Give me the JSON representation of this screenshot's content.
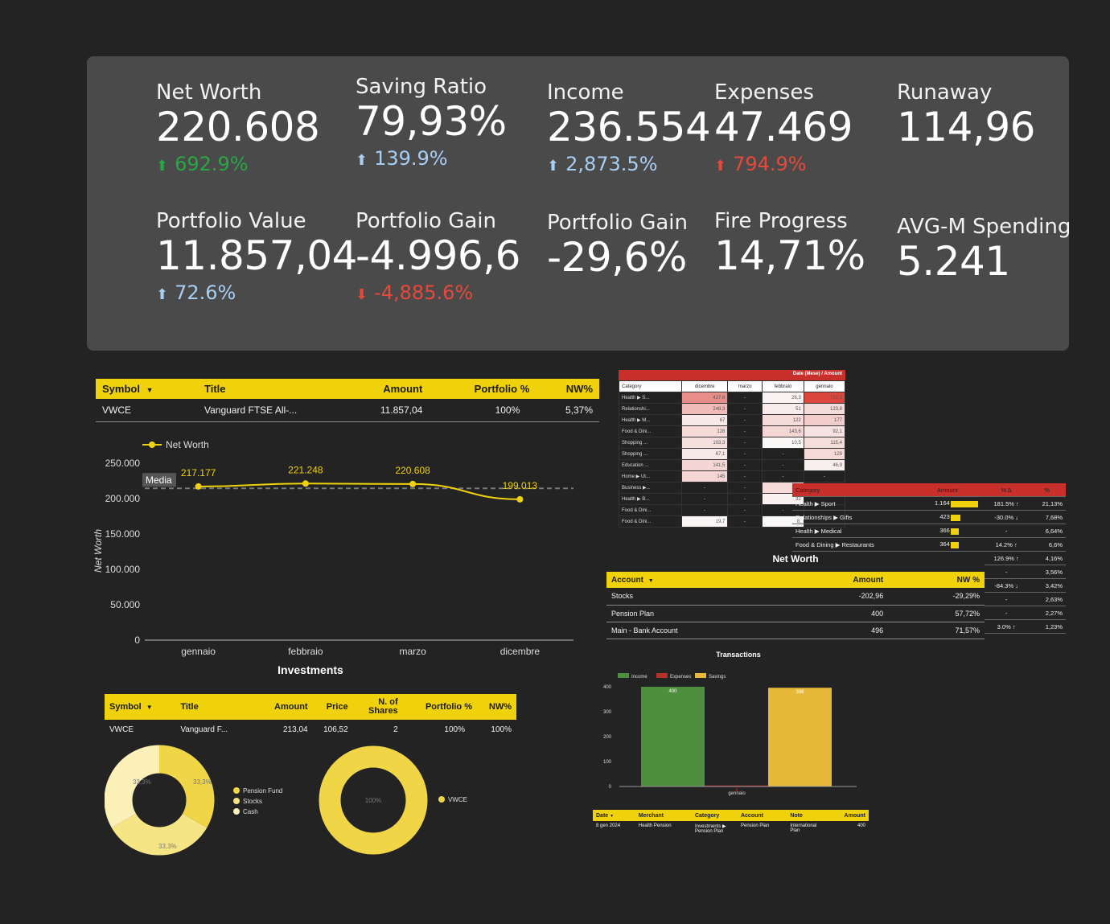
{
  "kpis": {
    "net_worth": {
      "label": "Net Worth",
      "value": "220.608",
      "delta": "692.9%",
      "dir": "up"
    },
    "saving_ratio": {
      "label": "Saving Ratio",
      "value": "79,93%",
      "delta": "139.9%",
      "dir": "up"
    },
    "income": {
      "label": "Income",
      "value": "236.554",
      "delta": "2,873.5%",
      "dir": "up"
    },
    "expenses": {
      "label": "Expenses",
      "value": "47.469",
      "delta": "794.9%",
      "dir": "up"
    },
    "runaway": {
      "label": "Runaway",
      "value": "114,96"
    },
    "portfolio_value": {
      "label": "Portfolio Value",
      "value": "11.857,04",
      "delta": "72.6%",
      "dir": "up"
    },
    "portfolio_gain_abs": {
      "label": "Portfolio Gain",
      "value": "-4.996,6",
      "delta": "-4,885.6%",
      "dir": "down"
    },
    "portfolio_gain_pct": {
      "label": "Portfolio Gain",
      "value": "-29,6%"
    },
    "fire_progress": {
      "label": "Fire Progress",
      "value": "14,71%"
    },
    "avg_spending": {
      "label": "AVG-M Spending",
      "value": "5.241"
    }
  },
  "portfolio_table": {
    "headers": [
      "Symbol",
      "Title",
      "Amount",
      "Portfolio %",
      "NW%"
    ],
    "rows": [
      [
        "VWCE",
        "Vanguard FTSE All-...",
        "11.857,04",
        "100%",
        "5,37%"
      ]
    ]
  },
  "networth_chart": {
    "legend": "Net Worth",
    "ylabel": "Net Worth",
    "media_label": "Media",
    "chart_data": {
      "type": "line",
      "categories": [
        "gennaio",
        "febbraio",
        "marzo",
        "dicembre"
      ],
      "values": [
        217177,
        221248,
        220608,
        199013
      ],
      "value_labels": [
        "217.177",
        "221.248",
        "220.608",
        "199.013"
      ],
      "average": 214512,
      "ylim": [
        0,
        250000
      ],
      "yticks": [
        0,
        50000,
        100000,
        150000,
        200000,
        250000
      ],
      "ytick_labels": [
        "0",
        "50.000",
        "100.000",
        "150.000",
        "200.000",
        "250.000"
      ]
    }
  },
  "investments": {
    "title": "Investments",
    "headers": [
      "Symbol",
      "Title",
      "Amount",
      "Price",
      "N. of Shares",
      "Portfolio %",
      "NW%"
    ],
    "rows": [
      [
        "VWCE",
        "Vanguard F...",
        "213,04",
        "106,52",
        "2",
        "100%",
        "100%"
      ]
    ]
  },
  "donut_alloc": {
    "slice_labels": [
      "33,3%",
      "33,3%",
      "33,3%"
    ],
    "legend": [
      "Pension Fund",
      "Stocks",
      "Cash"
    ],
    "colors": [
      "#f0d546",
      "#f6e585",
      "#faf0b8"
    ],
    "values": [
      33.3,
      33.3,
      33.3
    ]
  },
  "donut_symbol": {
    "slice_label": "100%",
    "legend": [
      "VWCE"
    ],
    "color": "#f0d546"
  },
  "heatmap": {
    "title": "Date (Mese) / Amount",
    "headers": [
      "Category",
      "dicembre",
      "marzo",
      "febbraio",
      "gennaio"
    ],
    "rows": [
      [
        "Health ▶ S...",
        "427,6",
        "-",
        "26,3",
        "710,3"
      ],
      [
        "Relationshi...",
        "248,3",
        "-",
        "51",
        "123,8"
      ],
      [
        "Health ▶ M...",
        "67",
        "-",
        "122",
        "177"
      ],
      [
        "Food & Dini...",
        "128",
        "-",
        "143,6",
        "92,1"
      ],
      [
        "Shopping ...",
        "103,3",
        "-",
        "10,5",
        "115,4"
      ],
      [
        "Shopping ...",
        "67,1",
        "-",
        "-",
        "129"
      ],
      [
        "Education ...",
        "141,5",
        "-",
        "-",
        "46,9"
      ],
      [
        "Home ▶ Ut...",
        "145",
        "-",
        "-",
        "-"
      ],
      [
        "Business ▶...",
        "-",
        "-",
        "125,",
        ""
      ],
      [
        "Health ▶ B...",
        "-",
        "-",
        "32",
        ""
      ],
      [
        "Food & Dini...",
        "-",
        "-",
        "-",
        ""
      ],
      [
        "Food & Dini...",
        "19,7",
        "-",
        "8,",
        ""
      ]
    ]
  },
  "category_table": {
    "headers": [
      "Category",
      "Amount",
      "% Δ",
      "%"
    ],
    "rows": [
      [
        "Health ▶ Sport",
        "1.164",
        "181.5% ↑",
        "21,13%"
      ],
      [
        "Relationships ▶ Gifts",
        "423",
        "-30.0% ↓",
        "7,68%"
      ],
      [
        "Health ▶ Medical",
        "366",
        "-",
        "6,64%"
      ],
      [
        "Food & Dining ▶ Restaurants",
        "364",
        "14.2% ↑",
        "6,6%"
      ],
      [
        "",
        "",
        "126.9% ↑",
        "4,16%"
      ],
      [
        "",
        "",
        "-",
        "3,56%"
      ],
      [
        "",
        "",
        "-84.3% ↓",
        "3,42%"
      ],
      [
        "",
        "",
        "-",
        "2,63%"
      ],
      [
        "",
        "",
        "-",
        "2,27%"
      ],
      [
        "",
        "",
        "3.0% ↑",
        "1,23%"
      ]
    ],
    "bar_fractions": [
      1.0,
      0.36,
      0.31,
      0.31
    ]
  },
  "networth_table": {
    "title": "Net Worth",
    "headers": [
      "Account",
      "Amount",
      "NW %"
    ],
    "rows": [
      [
        "Stocks",
        "-202,96",
        "-29,29%"
      ],
      [
        "Pension Plan",
        "400",
        "57,72%"
      ],
      [
        "Main - Bank Account",
        "496",
        "71,57%"
      ]
    ]
  },
  "transactions_chart": {
    "title": "Transactions",
    "chart_data": {
      "type": "bar",
      "categories": [
        "gennaio"
      ],
      "series": [
        {
          "name": "Income",
          "values": [
            400
          ],
          "color": "#4e8f3f"
        },
        {
          "name": "Expenses",
          "values": [
            4
          ],
          "color": "#b4312a"
        },
        {
          "name": "Savings",
          "values": [
            396
          ],
          "color": "#e8b83a"
        }
      ],
      "value_labels": [
        "400",
        "4",
        "396"
      ],
      "ylim": [
        0,
        400
      ],
      "yticks": [
        0,
        100,
        200,
        300,
        400
      ],
      "ytick_labels": [
        "0",
        "100",
        "200",
        "300",
        "400"
      ]
    }
  },
  "transactions_table": {
    "headers": [
      "Date",
      "Merchant",
      "Category",
      "Account",
      "Note",
      "Amount"
    ],
    "rows": [
      [
        "8 gen 2024",
        "Health Pension",
        "Investments ▶ Pension Plan",
        "Pension Plan",
        "International Plan",
        "400"
      ]
    ]
  }
}
